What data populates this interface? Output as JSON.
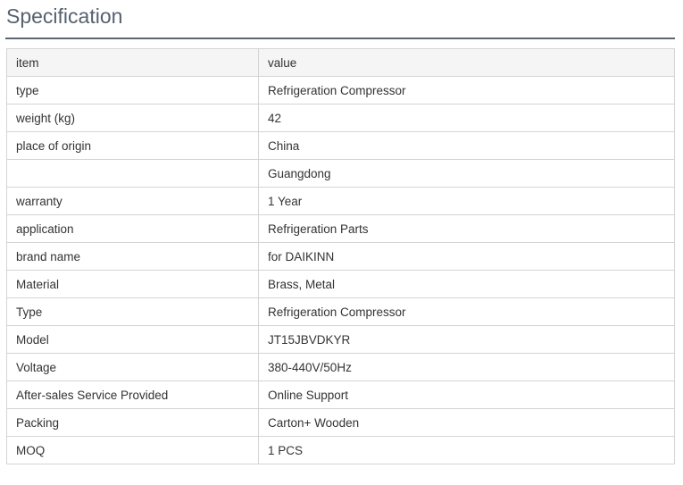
{
  "title": "Specification",
  "header": {
    "item": "item",
    "value": "value"
  },
  "rows": [
    [
      "type",
      "Refrigeration Compressor"
    ],
    [
      "weight (kg)",
      "42"
    ],
    [
      "place of origin",
      "China"
    ],
    [
      "",
      "Guangdong"
    ],
    [
      "warranty",
      "1 Year"
    ],
    [
      "application",
      "Refrigeration Parts"
    ],
    [
      "brand name",
      "for DAIKINN"
    ],
    [
      "Material",
      "Brass, Metal"
    ],
    [
      "Type",
      "Refrigeration Compressor"
    ],
    [
      "Model",
      "JT15JBVDKYR"
    ],
    [
      "Voltage",
      "380-440V/50Hz"
    ],
    [
      "After-sales Service Provided",
      "Online Support"
    ],
    [
      "Packing",
      "Carton+ Wooden"
    ],
    [
      "MOQ",
      "1 PCS"
    ]
  ]
}
